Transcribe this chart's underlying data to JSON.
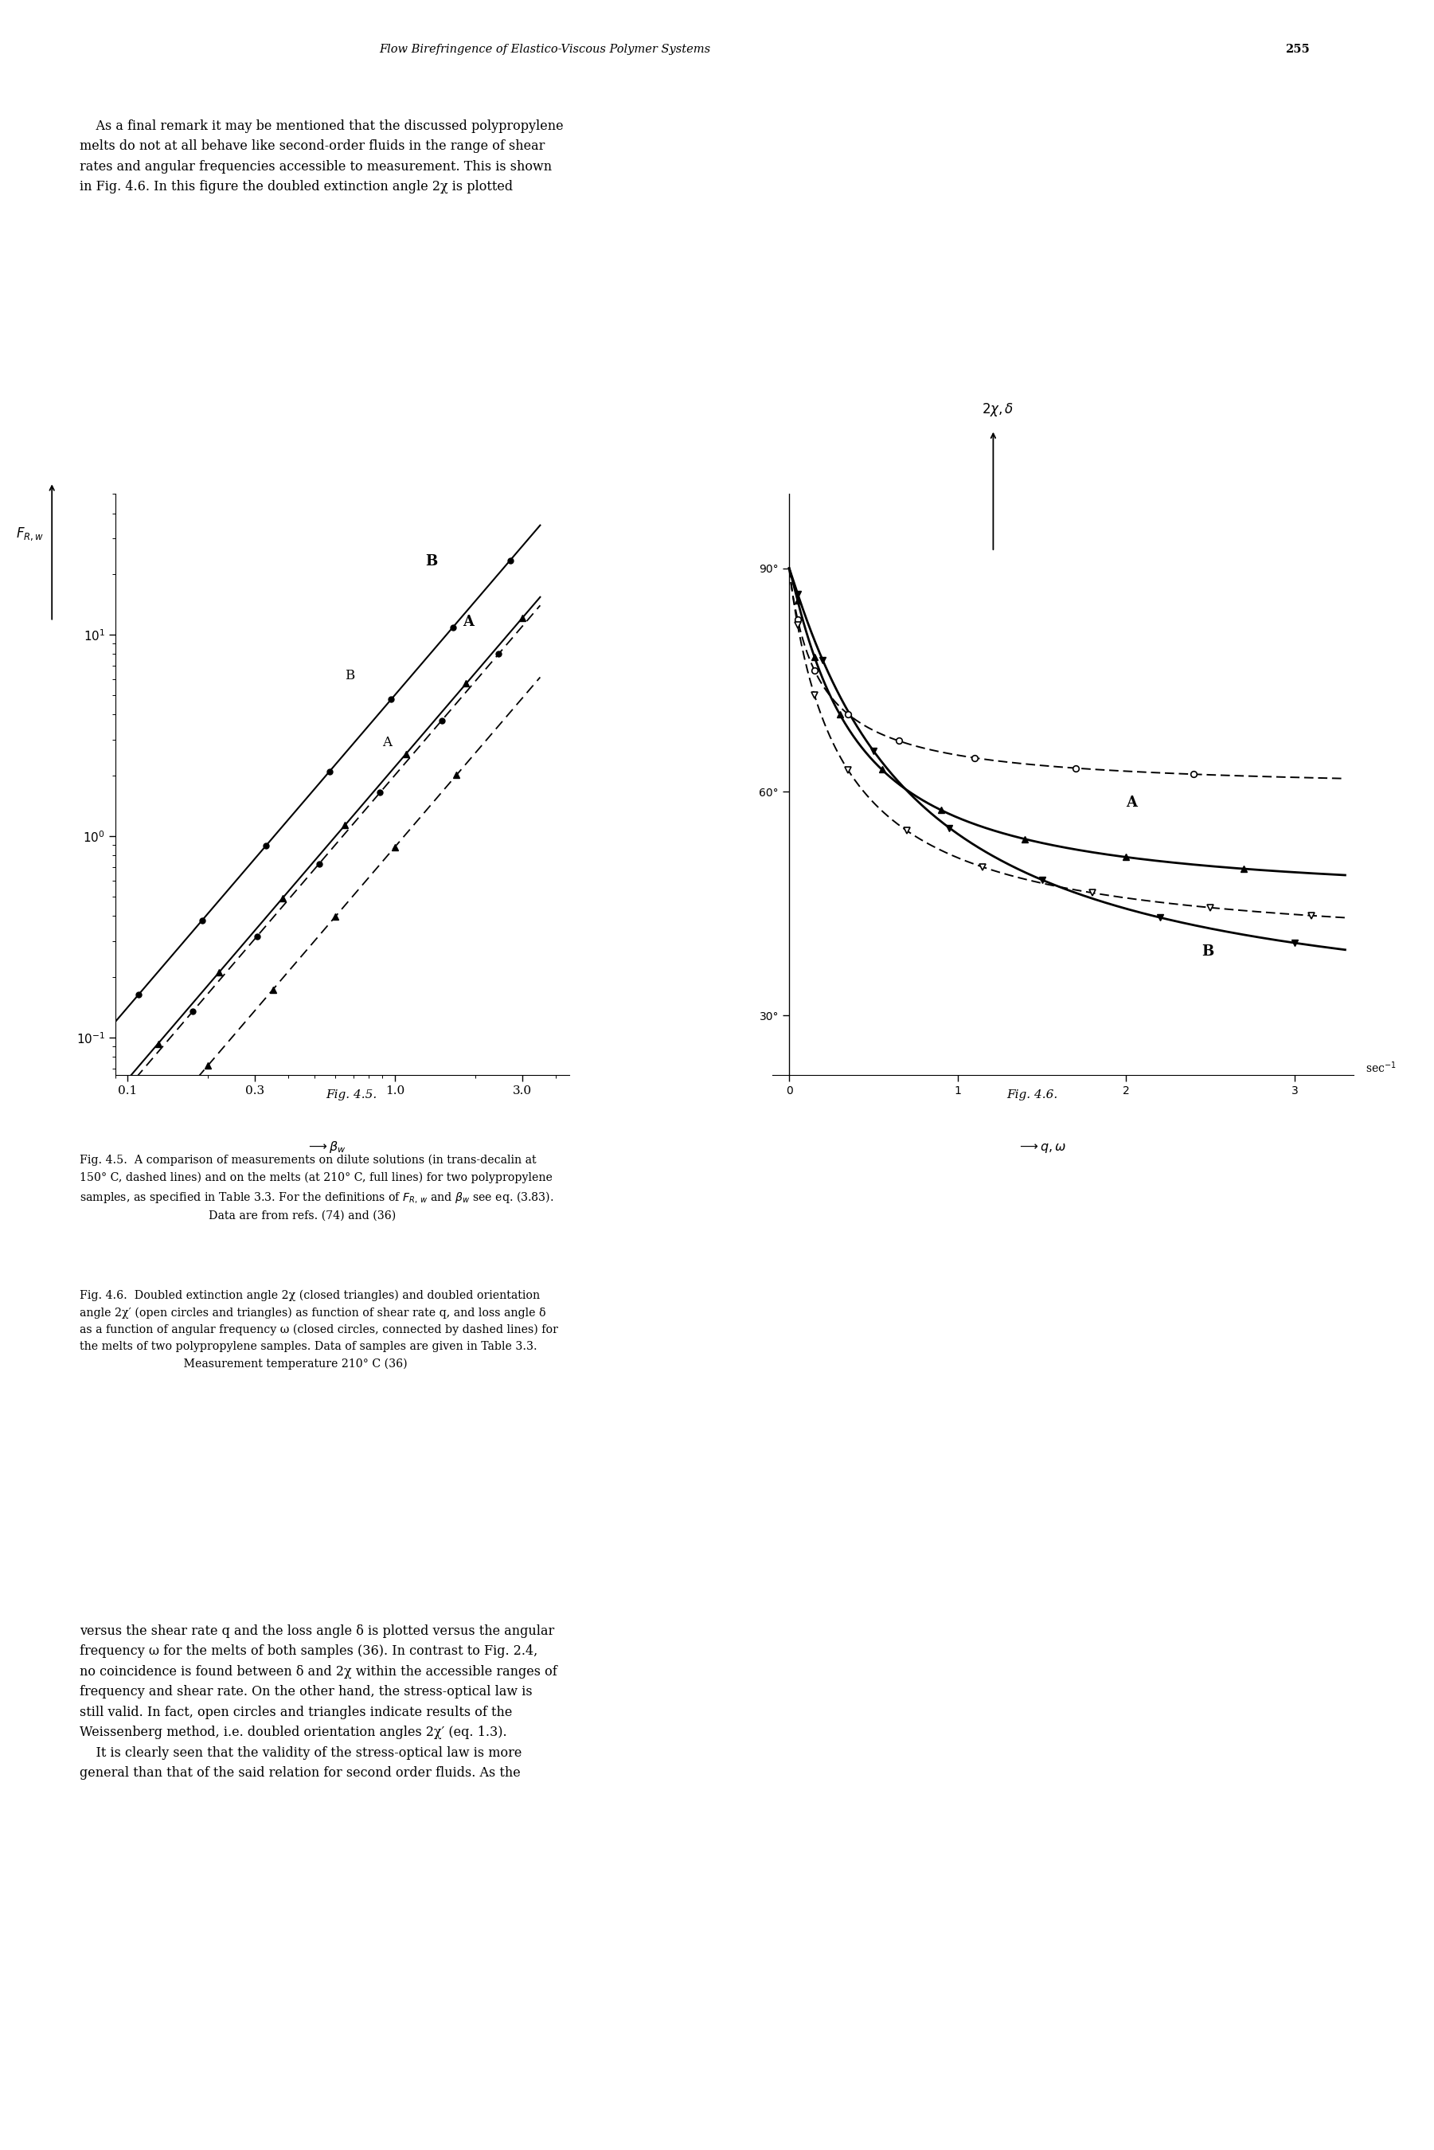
{
  "page_width": 18.01,
  "page_height": 27.0,
  "bg_color": "#ffffff",
  "header_text": "Flow Birefringence of Elastico-Viscous Polymer Systems",
  "header_page": "255",
  "intro_lines": [
    "    As a final remark it may be mentioned that the discussed polypropylene",
    "melts do not at all behave like second-order fluids in the range of shear",
    "rates and angular frequencies accessible to measurement. This is shown",
    "in Fig. 4.6. In this figure the doubled extinction angle 2χ is plotted"
  ],
  "fig45_xtick_vals": [
    0.1,
    0.3,
    1.0,
    3.0
  ],
  "fig45_xtick_labels": [
    "0.1",
    "0.3",
    "1.0",
    "3.0"
  ],
  "fig45_ytick_vals": [
    0.1,
    1.0,
    10.0
  ],
  "fig46_ytick_vals": [
    30,
    60,
    90
  ],
  "fig46_ytick_labels": [
    "30°",
    "60°",
    "90°"
  ],
  "fig46_xtick_vals": [
    0,
    1,
    2,
    3
  ],
  "fig46_xtick_labels": [
    "0",
    "1",
    "2",
    "3"
  ],
  "caption_45_lines": [
    "Fig. 4.5.  A comparison of measurements on dilute solutions (in trans-decalin at",
    "150° C, dashed lines) and on the melts (at 210° C, full lines) for two polypropylene",
    "samples, as specified in Table 3.3. For the definitions of Fᴿ, w and βw see eq. (3.83).",
    "Data are from refs. (74) and (36)"
  ],
  "caption_46_lines": [
    "Fig. 4.6.  Doubled extinction angle 2χ (closed triangles) and doubled orientation",
    "angle 2χ′ (open circles and triangles) as function of shear rate q, and loss angle δ",
    "as a function of angular frequency ω (closed circles, connected by dashed lines) for",
    "the melts of two polypropylene samples. Data of samples are given in Table 3.3.",
    "Measurement temperature 210° C (36)"
  ],
  "bottom_lines": [
    "versus the shear rate q and the loss angle δ is plotted versus the angular",
    "frequency ω for the melts of both samples (36). In contrast to Fig. 2.4,",
    "no coincidence is found between δ and 2χ within the accessible ranges of",
    "frequency and shear rate. On the other hand, the stress-optical law is",
    "still valid. In fact, open circles and triangles indicate results of the",
    "Weissenberg method, i.e. doubled orientation angles 2χ′ (eq. 1.3).",
    "    It is clearly seen that the validity of the stress-optical law is more",
    "general than that of the said relation for second order fluids. As the"
  ]
}
